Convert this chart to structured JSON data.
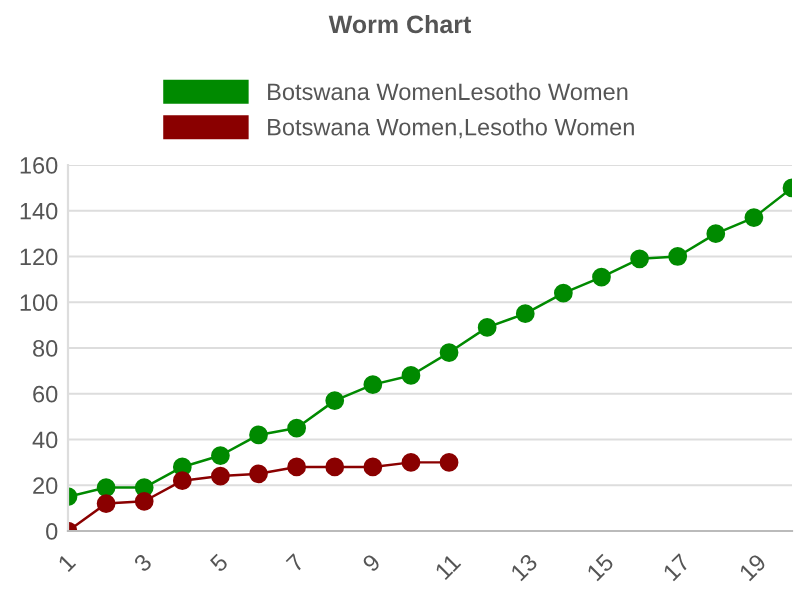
{
  "chart_data": {
    "type": "line",
    "title": "Worm Chart",
    "categories": [
      "1",
      null,
      "3",
      null,
      "5",
      null,
      "7",
      null,
      "9",
      null,
      "11",
      null,
      "13",
      null,
      "15",
      null,
      "17",
      null,
      "19",
      null
    ],
    "series": [
      {
        "name": "Botswana WomenLesotho Women",
        "color": "#008a00",
        "values": [
          15,
          19,
          19,
          28,
          33,
          42,
          45,
          57,
          64,
          68,
          78,
          89,
          95,
          104,
          111,
          119,
          120,
          130,
          137,
          150
        ]
      },
      {
        "name": "Botswana Women,Lesotho Women",
        "color": "#8a0000",
        "values": [
          0,
          12,
          13,
          22,
          24,
          25,
          28,
          28,
          28,
          30,
          30,
          null,
          null,
          null,
          null,
          null,
          null,
          null,
          null,
          null
        ]
      }
    ],
    "ylim": [
      0,
      160
    ],
    "yticks": [
      0,
      20,
      40,
      60,
      80,
      100,
      120,
      140,
      160
    ],
    "grid": "y",
    "legend": "top",
    "marker": "circle"
  }
}
